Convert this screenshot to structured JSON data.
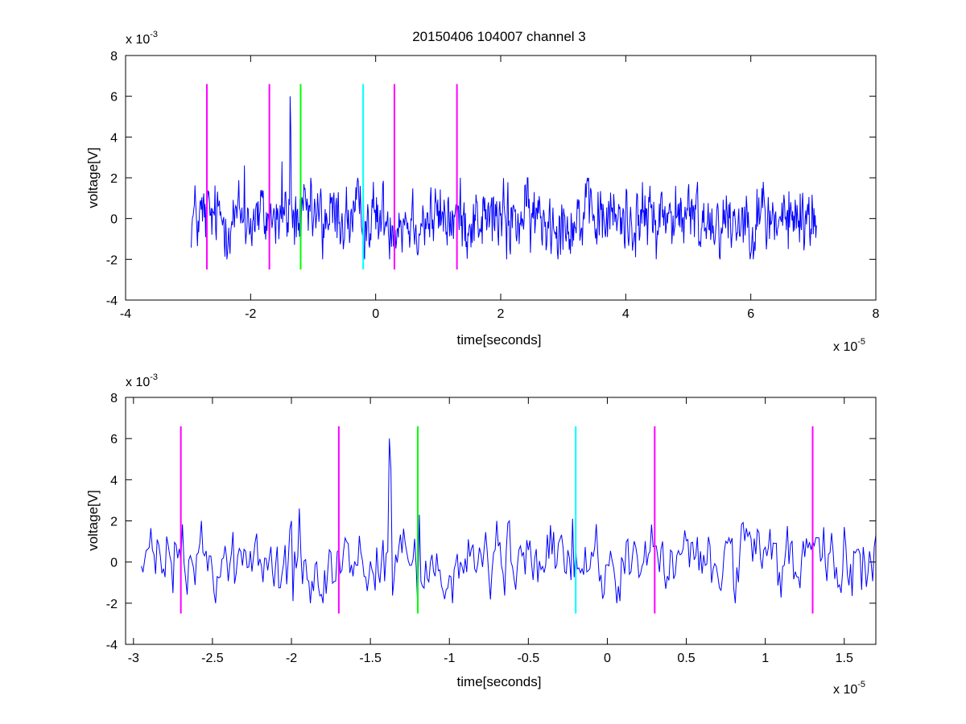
{
  "figure_title": "20150406 104007 channel 3",
  "colors": {
    "signal": "#0000ff",
    "magenta": "#ff00ff",
    "green": "#00ff00",
    "cyan": "#00ffff",
    "axes": "#000000",
    "background": "#ffffff"
  },
  "chart_data": [
    {
      "type": "line",
      "title": "20150406 104007 channel 3",
      "xlabel": "time[seconds]",
      "ylabel": "voltage[V]",
      "x_multiplier": "x 10^-5",
      "y_multiplier": "x 10^-3",
      "xlim": [
        -4,
        8
      ],
      "ylim": [
        -4,
        8
      ],
      "xticks": [
        -4,
        -2,
        0,
        2,
        4,
        6,
        8
      ],
      "yticks": [
        -4,
        -2,
        0,
        2,
        4,
        6,
        8
      ],
      "xtick_labels": [
        "-4",
        "-2",
        "0",
        "2",
        "4",
        "6",
        "8"
      ],
      "ytick_labels": [
        "-4",
        "-2",
        "0",
        "2",
        "4",
        "6",
        "8"
      ],
      "grid": false,
      "signal_x_range": [
        -2.95,
        7.05
      ],
      "signal_points": 1000,
      "marker_lines": {
        "y_range": [
          -2.5,
          6.6
        ],
        "items": [
          {
            "x": -2.7,
            "color": "magenta"
          },
          {
            "x": -1.7,
            "color": "magenta"
          },
          {
            "x": -1.2,
            "color": "green"
          },
          {
            "x": -0.2,
            "color": "cyan"
          },
          {
            "x": 0.3,
            "color": "magenta"
          },
          {
            "x": 1.3,
            "color": "magenta"
          }
        ]
      },
      "peaks": [
        {
          "x": -2.1,
          "y": 2.6
        },
        {
          "x": -1.5,
          "y": 2.8
        },
        {
          "x": -1.37,
          "y": 6.0
        },
        {
          "x": -1.36,
          "y": 4.5
        },
        {
          "x": -0.2,
          "y": 1.8
        },
        {
          "x": 2.1,
          "y": 2.6
        },
        {
          "x": 4.8,
          "y": 1.6
        },
        {
          "x": 6.2,
          "y": 1.8
        },
        {
          "x": -1.7,
          "y": -1.8
        },
        {
          "x": -1.2,
          "y": -2.2
        },
        {
          "x": -0.85,
          "y": -2.0
        },
        {
          "x": 2.1,
          "y": -2.0
        },
        {
          "x": 5.2,
          "y": -1.4
        },
        {
          "x": 6.6,
          "y": -1.5
        }
      ]
    },
    {
      "type": "line",
      "title": "",
      "xlabel": "time[seconds]",
      "ylabel": "voltage[V]",
      "x_multiplier": "x 10^-5",
      "y_multiplier": "x 10^-3",
      "xlim": [
        -3.05,
        1.7
      ],
      "ylim": [
        -4,
        8
      ],
      "xticks": [
        -3,
        -2.5,
        -2,
        -1.5,
        -1,
        -0.5,
        0,
        0.5,
        1,
        1.5
      ],
      "yticks": [
        -4,
        -2,
        0,
        2,
        4,
        6,
        8
      ],
      "xtick_labels": [
        "-3",
        "-2.5",
        "-2",
        "-1.5",
        "-1",
        "-0.5",
        "0",
        "0.5",
        "1",
        "1.5"
      ],
      "ytick_labels": [
        "-4",
        "-2",
        "0",
        "2",
        "4",
        "6",
        "8"
      ],
      "grid": false,
      "signal_x_range": [
        -2.95,
        1.7
      ],
      "signal_points": 466,
      "marker_lines": {
        "y_range": [
          -2.5,
          6.6
        ],
        "items": [
          {
            "x": -2.7,
            "color": "magenta"
          },
          {
            "x": -1.7,
            "color": "magenta"
          },
          {
            "x": -1.2,
            "color": "green"
          },
          {
            "x": -0.2,
            "color": "cyan"
          },
          {
            "x": 0.3,
            "color": "magenta"
          },
          {
            "x": 1.3,
            "color": "magenta"
          }
        ]
      },
      "peaks": [
        {
          "x": -1.95,
          "y": 2.6
        },
        {
          "x": -1.38,
          "y": 6.0
        },
        {
          "x": -1.37,
          "y": 4.5
        },
        {
          "x": -1.19,
          "y": 2.3
        },
        {
          "x": -0.22,
          "y": 2.1
        },
        {
          "x": 1.5,
          "y": 1.7
        },
        {
          "x": -1.99,
          "y": -1.9
        },
        {
          "x": -1.2,
          "y": -2.3
        },
        {
          "x": -0.98,
          "y": -2.0
        },
        {
          "x": 0.08,
          "y": -1.9
        },
        {
          "x": 1.48,
          "y": -1.5
        }
      ]
    }
  ]
}
